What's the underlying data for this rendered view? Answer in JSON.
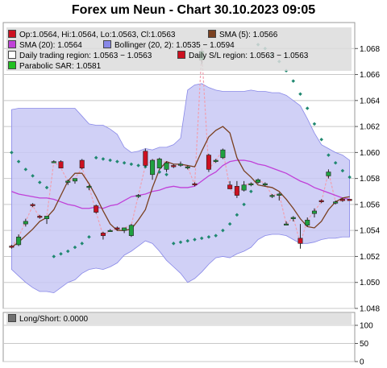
{
  "title": "Forex um Neun - Chart 30.10.2023 09:05",
  "colors": {
    "bg": "#ffffff",
    "plot_bg": "#ffffff",
    "grid": "#c8c8c8",
    "band_fill": "#c8c8f5",
    "band_edge": "#8888e8",
    "sma20": "#c040d8",
    "sma5": "#7a4020",
    "candle_up": "#20a040",
    "candle_down": "#cc1020",
    "sar": "#208870",
    "trading_region": "#f0a0b0"
  },
  "legend": [
    {
      "label": "Op:1.0564, Hi:1.0564, Lo:1.0563, Cl:1.0563",
      "color": "#cc1020",
      "icon": "red-square-icon"
    },
    {
      "label": "SMA (5): 1.0566",
      "color": "#7a4020",
      "icon": "brown-square-icon"
    },
    {
      "label": "SMA (20): 1.0564",
      "color": "#c040d8",
      "icon": "purple-square-icon"
    },
    {
      "label": "Bollinger (20, 2): 1.0535 − 1.0594",
      "color": "#8888e8",
      "icon": "blue-square-icon"
    },
    {
      "label": "Daily trading region: 1.0563 − 1.0563",
      "color": "#ffffff",
      "icon": "white-square-icon"
    },
    {
      "label": "Daily S/L region: 1.0563 − 1.0563",
      "color": "#cc1020",
      "icon": "red-square-icon"
    },
    {
      "label": "Parabolic SAR: 1.0581",
      "color": "#20c020",
      "icon": "green-square-icon"
    }
  ],
  "lower_legend": {
    "label": "Long/Short: 0.0000",
    "color": "#707070",
    "icon": "gray-square-icon"
  },
  "chart_data": {
    "type": "candlestick",
    "title": "Forex um Neun - Chart 30.10.2023 09:05",
    "ylim": [
      1.048,
      1.07
    ],
    "y_ticks": [
      "1.048",
      "1.050",
      "1.052",
      "1.054",
      "1.056",
      "1.058",
      "1.060",
      "1.062",
      "1.064",
      "1.066",
      "1.068"
    ],
    "grid": true,
    "candles": [
      {
        "o": 1.0528,
        "h": 1.0529,
        "l": 1.0526,
        "c": 1.0527
      },
      {
        "o": 1.0529,
        "h": 1.0537,
        "l": 1.0528,
        "c": 1.0535
      },
      {
        "o": 1.0545,
        "h": 1.0549,
        "l": 1.0543,
        "c": 1.0547
      },
      {
        "o": 1.056,
        "h": 1.0561,
        "l": 1.0558,
        "c": 1.0559
      },
      {
        "o": 1.0551,
        "h": 1.0552,
        "l": 1.0549,
        "c": 1.055
      },
      {
        "o": 1.0549,
        "h": 1.0551,
        "l": 1.0545,
        "c": 1.0551
      },
      {
        "o": 1.0593,
        "h": 1.0594,
        "l": 1.0592,
        "c": 1.0593
      },
      {
        "o": 1.0593,
        "h": 1.0594,
        "l": 1.0588,
        "c": 1.0588
      },
      {
        "o": 1.0577,
        "h": 1.0579,
        "l": 1.0575,
        "c": 1.0578
      },
      {
        "o": 1.0578,
        "h": 1.058,
        "l": 1.0576,
        "c": 1.058
      },
      {
        "o": 1.0594,
        "h": 1.0595,
        "l": 1.0587,
        "c": 1.0588
      },
      {
        "o": 1.0573,
        "h": 1.0575,
        "l": 1.0571,
        "c": 1.0574
      },
      {
        "o": 1.0559,
        "h": 1.056,
        "l": 1.0553,
        "c": 1.0554
      },
      {
        "o": 1.0538,
        "h": 1.0539,
        "l": 1.0533,
        "c": 1.0536
      },
      {
        "o": 1.054,
        "h": 1.0541,
        "l": 1.0539,
        "c": 1.054
      },
      {
        "o": 1.0542,
        "h": 1.0543,
        "l": 1.054,
        "c": 1.0541
      },
      {
        "o": 1.054,
        "h": 1.0542,
        "l": 1.0538,
        "c": 1.0542
      },
      {
        "o": 1.0536,
        "h": 1.0545,
        "l": 1.0535,
        "c": 1.0544
      },
      {
        "o": 1.0567,
        "h": 1.0568,
        "l": 1.0565,
        "c": 1.0567
      },
      {
        "o": 1.0601,
        "h": 1.0603,
        "l": 1.0589,
        "c": 1.059
      },
      {
        "o": 1.0583,
        "h": 1.0595,
        "l": 1.0579,
        "c": 1.0594
      },
      {
        "o": 1.0588,
        "h": 1.0596,
        "l": 1.0588,
        "c": 1.0595
      },
      {
        "o": 1.0587,
        "h": 1.0593,
        "l": 1.0585,
        "c": 1.0592
      },
      {
        "o": 1.059,
        "h": 1.0591,
        "l": 1.0588,
        "c": 1.0589
      },
      {
        "o": 1.0591,
        "h": 1.0593,
        "l": 1.0589,
        "c": 1.0591
      },
      {
        "o": 1.0589,
        "h": 1.059,
        "l": 1.0587,
        "c": 1.0589
      },
      {
        "o": 1.0576,
        "h": 1.0577,
        "l": 1.0574,
        "c": 1.0575
      },
      {
        "o": 1.0671,
        "h": 1.068,
        "l": 1.0668,
        "c": 1.0678
      },
      {
        "o": 1.0598,
        "h": 1.0599,
        "l": 1.0585,
        "c": 1.0587
      },
      {
        "o": 1.0593,
        "h": 1.0595,
        "l": 1.0592,
        "c": 1.0594
      },
      {
        "o": 1.0596,
        "h": 1.0603,
        "l": 1.0595,
        "c": 1.0602
      },
      {
        "o": 1.0575,
        "h": 1.0578,
        "l": 1.0572,
        "c": 1.0572
      },
      {
        "o": 1.0574,
        "h": 1.0578,
        "l": 1.0565,
        "c": 1.0567
      },
      {
        "o": 1.0571,
        "h": 1.0578,
        "l": 1.057,
        "c": 1.0575
      },
      {
        "o": 1.0575,
        "h": 1.0577,
        "l": 1.0574,
        "c": 1.0576
      },
      {
        "o": 1.0577,
        "h": 1.058,
        "l": 1.0576,
        "c": 1.0579
      },
      {
        "o": 1.0575,
        "h": 1.0577,
        "l": 1.0574,
        "c": 1.0576
      },
      {
        "o": 1.0567,
        "h": 1.0568,
        "l": 1.0565,
        "c": 1.0567
      },
      {
        "o": 1.0567,
        "h": 1.0569,
        "l": 1.0563,
        "c": 1.0568
      },
      {
        "o": 1.0545,
        "h": 1.0547,
        "l": 1.0544,
        "c": 1.0545
      },
      {
        "o": 1.0549,
        "h": 1.0551,
        "l": 1.0547,
        "c": 1.055
      },
      {
        "o": 1.0534,
        "h": 1.0545,
        "l": 1.0526,
        "c": 1.053
      },
      {
        "o": 1.0544,
        "h": 1.055,
        "l": 1.0543,
        "c": 1.0548
      },
      {
        "o": 1.0553,
        "h": 1.0557,
        "l": 1.055,
        "c": 1.0555
      },
      {
        "o": 1.0563,
        "h": 1.0564,
        "l": 1.0561,
        "c": 1.0562
      },
      {
        "o": 1.0582,
        "h": 1.0587,
        "l": 1.058,
        "c": 1.0585
      },
      {
        "o": 1.0561,
        "h": 1.0563,
        "l": 1.056,
        "c": 1.0562
      },
      {
        "o": 1.0564,
        "h": 1.0565,
        "l": 1.0562,
        "c": 1.0563
      },
      {
        "o": 1.0564,
        "h": 1.0564,
        "l": 1.0563,
        "c": 1.0563
      }
    ],
    "series": [
      {
        "name": "SMA (20)",
        "values": [
          1.057,
          1.0568,
          1.0567,
          1.0566,
          1.0565,
          1.0565,
          1.0564,
          1.0562,
          1.056,
          1.0559,
          1.0557,
          1.0557,
          1.0558,
          1.0557,
          1.0559,
          1.056,
          1.0563,
          1.0566,
          1.0567,
          1.0568,
          1.057,
          1.0571,
          1.0573,
          1.0574,
          1.0573,
          1.0573,
          1.0574,
          1.0578,
          1.0582,
          1.0585,
          1.059,
          1.0593,
          1.0594,
          1.0594,
          1.0593,
          1.0591,
          1.059,
          1.0588,
          1.0586,
          1.0584,
          1.0581,
          1.0578,
          1.0576,
          1.0573,
          1.0571,
          1.0569,
          1.0567,
          1.0565,
          1.0564
        ]
      },
      {
        "name": "SMA (5)",
        "values": [
          1.0527,
          1.0531,
          1.0536,
          1.0541,
          1.0547,
          1.055,
          1.0556,
          1.0567,
          1.0578,
          1.0584,
          1.0584,
          1.0576,
          1.0566,
          1.0555,
          1.0545,
          1.054,
          1.054,
          1.0541,
          1.0548,
          1.0556,
          1.0573,
          1.0587,
          1.0593,
          1.0591,
          1.0591,
          1.059,
          1.0589,
          1.0601,
          1.0612,
          1.0617,
          1.062,
          1.0615,
          1.0596,
          1.0586,
          1.0581,
          1.0575,
          1.0574,
          1.0573,
          1.057,
          1.0564,
          1.0557,
          1.0549,
          1.0543,
          1.0542,
          1.0547,
          1.0556,
          1.0562,
          1.0565,
          1.0566
        ]
      },
      {
        "name": "Bollinger upper",
        "values": [
          1.0633,
          1.0634,
          1.0634,
          1.0634,
          1.0634,
          1.0634,
          1.0634,
          1.0634,
          1.0634,
          1.0634,
          1.0628,
          1.0622,
          1.0621,
          1.0621,
          1.0618,
          1.0614,
          1.0604,
          1.06,
          1.0601,
          1.0603,
          1.0602,
          1.0604,
          1.0604,
          1.0606,
          1.0611,
          1.0648,
          1.0652,
          1.0653,
          1.065,
          1.0648,
          1.0647,
          1.0647,
          1.0647,
          1.0647,
          1.0648,
          1.0647,
          1.0647,
          1.0646,
          1.0646,
          1.0644,
          1.064,
          1.0636,
          1.0626,
          1.0615,
          1.0606,
          1.0603,
          1.06,
          1.0598,
          1.0594
        ]
      },
      {
        "name": "Bollinger lower",
        "values": [
          1.051,
          1.0505,
          1.05,
          1.0496,
          1.0493,
          1.0493,
          1.0492,
          1.0496,
          1.05,
          1.0502,
          1.0507,
          1.051,
          1.0511,
          1.051,
          1.0512,
          1.0515,
          1.0521,
          1.0524,
          1.0528,
          1.0532,
          1.053,
          1.0524,
          1.0517,
          1.0512,
          1.0507,
          1.05,
          1.0503,
          1.0508,
          1.0514,
          1.0519,
          1.052,
          1.0519,
          1.0522,
          1.0524,
          1.0527,
          1.0533,
          1.0536,
          1.0537,
          1.0537,
          1.0536,
          1.0533,
          1.053,
          1.053,
          1.0531,
          1.0533,
          1.0534,
          1.0534,
          1.0535,
          1.0535
        ]
      },
      {
        "name": "Parabolic SAR",
        "values": [
          1.06,
          1.0593,
          1.0587,
          1.0582,
          1.0577,
          1.0573,
          1.052,
          1.0522,
          1.0524,
          1.0527,
          1.053,
          1.0535,
          1.0596,
          1.0595,
          1.0594,
          1.0593,
          1.0592,
          1.0591,
          1.059,
          1.0589,
          1.0587,
          1.0585,
          1.0583,
          1.053,
          1.0531,
          1.0532,
          1.0533,
          1.0534,
          1.0535,
          1.0536,
          1.054,
          1.0545,
          1.0552,
          1.056,
          1.057,
          1.0683,
          1.068,
          1.0675,
          1.067,
          1.0663,
          1.0655,
          1.0645,
          1.0634,
          1.0622,
          1.061,
          1.0598,
          1.0592,
          1.0586,
          1.0581
        ]
      }
    ],
    "lower_panel": {
      "y_ticks": [
        "0",
        "50",
        "100"
      ],
      "ylim": [
        0,
        100
      ],
      "series": [
        {
          "name": "Long/Short",
          "values": [
            0
          ]
        }
      ]
    }
  }
}
